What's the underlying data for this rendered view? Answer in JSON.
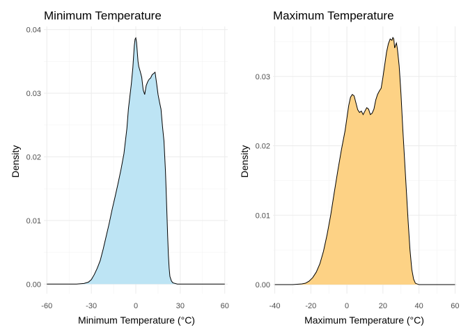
{
  "chart_data": [
    {
      "type": "area",
      "title": "Minimum Temperature",
      "xlabel": "Minimum Temperature (°C)",
      "ylabel": "Density",
      "xlim": [
        -62,
        62
      ],
      "ylim": [
        -0.0015,
        0.0405
      ],
      "x_ticks": [
        -60,
        -30,
        0,
        30,
        60
      ],
      "x_tick_labels": [
        "-60",
        "-30",
        "0",
        "30",
        "60"
      ],
      "y_ticks": [
        0,
        0.01,
        0.02,
        0.03,
        0.04
      ],
      "y_tick_labels": [
        "0.00",
        "0.01",
        "0.02",
        "0.03",
        "0.04"
      ],
      "grid": true,
      "fill_color": "#bde4f4",
      "line_color": "#000000",
      "series": [
        {
          "x": [
            -60,
            -40,
            -35,
            -32,
            -30,
            -28,
            -26,
            -24,
            -22,
            -20,
            -18,
            -16,
            -14,
            -12,
            -10,
            -8,
            -6,
            -5,
            -4,
            -3,
            -2,
            -1.5,
            -1,
            -0.5,
            0,
            0.5,
            1,
            1.5,
            2,
            3,
            4,
            5,
            6,
            7,
            8,
            9,
            10,
            11,
            12,
            13,
            14,
            15,
            16,
            17,
            18,
            19,
            20,
            20.5,
            21,
            21.5,
            22,
            22.5,
            23,
            24,
            25,
            28,
            60
          ],
          "y": [
            0,
            0,
            0.0001,
            0.0003,
            0.0007,
            0.0015,
            0.0025,
            0.0037,
            0.0055,
            0.0075,
            0.0095,
            0.0117,
            0.0137,
            0.0158,
            0.018,
            0.0205,
            0.0245,
            0.0275,
            0.0295,
            0.0315,
            0.034,
            0.0358,
            0.0375,
            0.0385,
            0.0387,
            0.038,
            0.0365,
            0.035,
            0.0342,
            0.0334,
            0.0325,
            0.0305,
            0.0298,
            0.0312,
            0.0318,
            0.0322,
            0.0324,
            0.0329,
            0.0331,
            0.0333,
            0.0316,
            0.0298,
            0.0286,
            0.0275,
            0.0248,
            0.0225,
            0.0178,
            0.0145,
            0.011,
            0.0075,
            0.0045,
            0.0025,
            0.0012,
            0.0005,
            0.0002,
            0,
            0
          ]
        }
      ]
    },
    {
      "type": "area",
      "title": "Maximum Temperature",
      "xlabel": "Maximum Temperature (°C)",
      "ylabel": "Density",
      "xlim": [
        -41,
        61
      ],
      "ylim": [
        -0.0013,
        0.0372
      ],
      "x_ticks": [
        -40,
        -20,
        0,
        20,
        40,
        60
      ],
      "x_tick_labels": [
        "-40",
        "-20",
        "0",
        "20",
        "40",
        "60"
      ],
      "y_ticks": [
        0,
        0.01,
        0.02,
        0.03
      ],
      "y_tick_labels": [
        "0.00",
        "0.01",
        "0.02",
        "0.03"
      ],
      "grid": true,
      "fill_color": "#fdd285",
      "line_color": "#000000",
      "series": [
        {
          "x": [
            -40,
            -30,
            -25,
            -23,
            -21,
            -19,
            -17,
            -15,
            -13,
            -11,
            -9,
            -7,
            -5,
            -3,
            -1,
            0,
            1,
            2,
            3,
            4,
            5,
            6,
            7,
            8,
            9,
            10,
            11,
            12,
            13,
            14,
            15,
            16,
            17,
            18,
            19,
            20,
            21,
            22,
            23,
            24,
            25,
            25.5,
            26,
            26.5,
            27,
            27.5,
            28,
            29,
            30,
            31,
            32,
            33,
            34,
            35,
            36,
            37,
            38,
            40,
            60
          ],
          "y": [
            0,
            0,
            0.0001,
            0.0002,
            0.0005,
            0.001,
            0.0018,
            0.003,
            0.0048,
            0.0072,
            0.01,
            0.0133,
            0.0165,
            0.0195,
            0.0222,
            0.024,
            0.0258,
            0.027,
            0.0274,
            0.0272,
            0.0262,
            0.0252,
            0.0248,
            0.025,
            0.0245,
            0.025,
            0.0255,
            0.0253,
            0.0245,
            0.0247,
            0.0253,
            0.0266,
            0.0274,
            0.0279,
            0.0283,
            0.0299,
            0.0317,
            0.0335,
            0.0347,
            0.0354,
            0.0352,
            0.0356,
            0.0354,
            0.0341,
            0.0345,
            0.0348,
            0.034,
            0.0315,
            0.0275,
            0.0225,
            0.018,
            0.0135,
            0.009,
            0.005,
            0.0022,
            0.0008,
            0.0002,
            0,
            0
          ]
        }
      ]
    }
  ]
}
